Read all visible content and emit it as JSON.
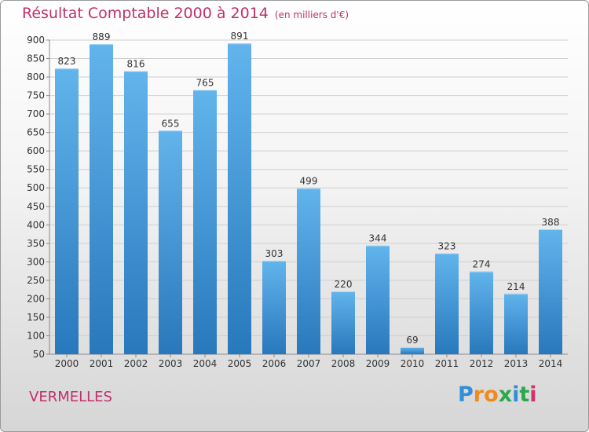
{
  "title": "Résultat Comptable 2000 à 2014",
  "subtitle": "(en milliers d'€)",
  "location": "VERMELLES",
  "brand": {
    "letters": [
      "P",
      "r",
      "o",
      "x",
      "i",
      "t",
      "i"
    ],
    "colors": [
      "#2f8fd8",
      "#f08a1c",
      "#f08a1c",
      "#2aa84a",
      "#2f8fd8",
      "#2aa84a",
      "#d6306a"
    ]
  },
  "colors": {
    "bar_light": "#62b4ec",
    "bar_dark": "#2878bc",
    "grid": "#cfcfcf",
    "title": "#c0306a",
    "text": "#333333"
  },
  "chart_data": {
    "type": "bar",
    "categories": [
      "2000",
      "2001",
      "2002",
      "2003",
      "2004",
      "2005",
      "2006",
      "2007",
      "2008",
      "2009",
      "2010",
      "2011",
      "2012",
      "2013",
      "2014"
    ],
    "values": [
      823,
      889,
      816,
      655,
      765,
      891,
      303,
      499,
      220,
      344,
      69,
      323,
      274,
      214,
      388
    ],
    "ylim": [
      50,
      900
    ],
    "yticks": [
      50,
      100,
      150,
      200,
      250,
      300,
      350,
      400,
      450,
      500,
      550,
      600,
      650,
      700,
      750,
      800,
      850,
      900
    ],
    "grid": true,
    "legend": "none"
  }
}
